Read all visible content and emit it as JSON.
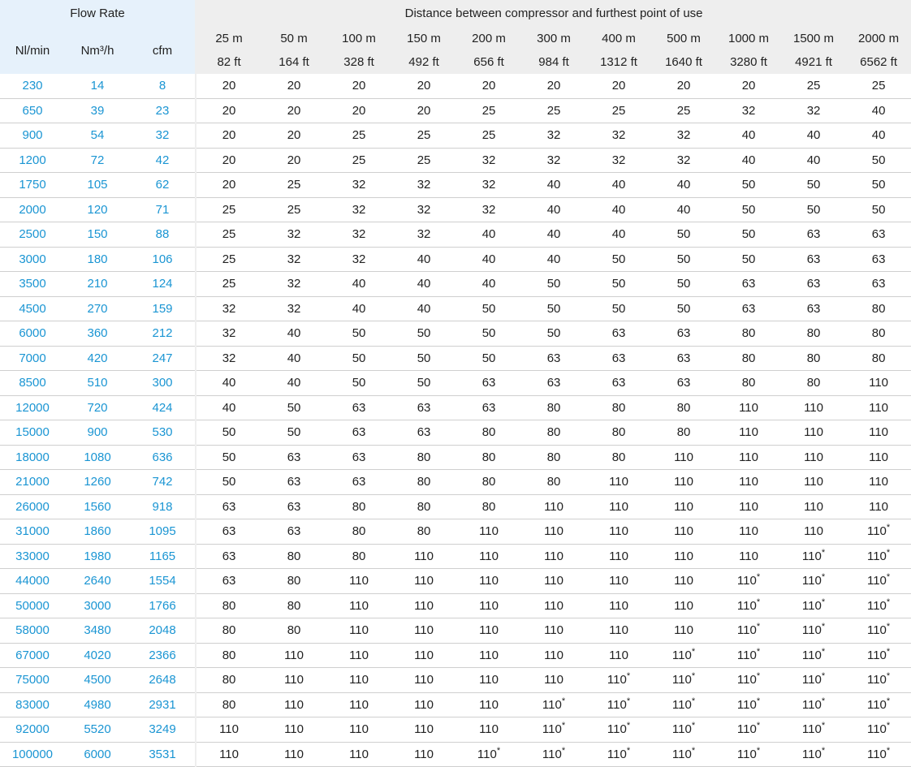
{
  "header": {
    "flow_rate": "Flow Rate",
    "distance": "Distance between compressor and furthest point of use",
    "col_nl": "Nl/min",
    "col_nm": "Nm³/h",
    "col_cfm": "cfm",
    "distances_m": [
      "25 m",
      "50 m",
      "100 m",
      "150 m",
      "200 m",
      "300 m",
      "400 m",
      "500 m",
      "1000 m",
      "1500 m",
      "2000 m"
    ],
    "distances_ft": [
      "82 ft",
      "164 ft",
      "328 ft",
      "492 ft",
      "656 ft",
      "984 ft",
      "1312 ft",
      "1640 ft",
      "3280 ft",
      "4921 ft",
      "6562 ft"
    ]
  },
  "rows": [
    {
      "nl": "230",
      "nm": "14",
      "cfm": "8",
      "v": [
        "20",
        "20",
        "20",
        "20",
        "20",
        "20",
        "20",
        "20",
        "20",
        "25",
        "25"
      ]
    },
    {
      "nl": "650",
      "nm": "39",
      "cfm": "23",
      "v": [
        "20",
        "20",
        "20",
        "20",
        "25",
        "25",
        "25",
        "25",
        "32",
        "32",
        "40"
      ]
    },
    {
      "nl": "900",
      "nm": "54",
      "cfm": "32",
      "v": [
        "20",
        "20",
        "25",
        "25",
        "25",
        "32",
        "32",
        "32",
        "40",
        "40",
        "40"
      ]
    },
    {
      "nl": "1200",
      "nm": "72",
      "cfm": "42",
      "v": [
        "20",
        "20",
        "25",
        "25",
        "32",
        "32",
        "32",
        "32",
        "40",
        "40",
        "50"
      ]
    },
    {
      "nl": "1750",
      "nm": "105",
      "cfm": "62",
      "v": [
        "20",
        "25",
        "32",
        "32",
        "32",
        "40",
        "40",
        "40",
        "50",
        "50",
        "50"
      ]
    },
    {
      "nl": "2000",
      "nm": "120",
      "cfm": "71",
      "v": [
        "25",
        "25",
        "32",
        "32",
        "32",
        "40",
        "40",
        "40",
        "50",
        "50",
        "50"
      ]
    },
    {
      "nl": "2500",
      "nm": "150",
      "cfm": "88",
      "v": [
        "25",
        "32",
        "32",
        "32",
        "40",
        "40",
        "40",
        "50",
        "50",
        "63",
        "63"
      ]
    },
    {
      "nl": "3000",
      "nm": "180",
      "cfm": "106",
      "v": [
        "25",
        "32",
        "32",
        "40",
        "40",
        "40",
        "50",
        "50",
        "50",
        "63",
        "63"
      ]
    },
    {
      "nl": "3500",
      "nm": "210",
      "cfm": "124",
      "v": [
        "25",
        "32",
        "40",
        "40",
        "40",
        "50",
        "50",
        "50",
        "63",
        "63",
        "63"
      ]
    },
    {
      "nl": "4500",
      "nm": "270",
      "cfm": "159",
      "v": [
        "32",
        "32",
        "40",
        "40",
        "50",
        "50",
        "50",
        "50",
        "63",
        "63",
        "80"
      ]
    },
    {
      "nl": "6000",
      "nm": "360",
      "cfm": "212",
      "v": [
        "32",
        "40",
        "50",
        "50",
        "50",
        "50",
        "63",
        "63",
        "80",
        "80",
        "80"
      ]
    },
    {
      "nl": "7000",
      "nm": "420",
      "cfm": "247",
      "v": [
        "32",
        "40",
        "50",
        "50",
        "50",
        "63",
        "63",
        "63",
        "80",
        "80",
        "80"
      ]
    },
    {
      "nl": "8500",
      "nm": "510",
      "cfm": "300",
      "v": [
        "40",
        "40",
        "50",
        "50",
        "63",
        "63",
        "63",
        "63",
        "80",
        "80",
        "110"
      ]
    },
    {
      "nl": "12000",
      "nm": "720",
      "cfm": "424",
      "v": [
        "40",
        "50",
        "63",
        "63",
        "63",
        "80",
        "80",
        "80",
        "110",
        "110",
        "110"
      ]
    },
    {
      "nl": "15000",
      "nm": "900",
      "cfm": "530",
      "v": [
        "50",
        "50",
        "63",
        "63",
        "80",
        "80",
        "80",
        "80",
        "110",
        "110",
        "110"
      ]
    },
    {
      "nl": "18000",
      "nm": "1080",
      "cfm": "636",
      "v": [
        "50",
        "63",
        "63",
        "80",
        "80",
        "80",
        "80",
        "110",
        "110",
        "110",
        "110"
      ]
    },
    {
      "nl": "21000",
      "nm": "1260",
      "cfm": "742",
      "v": [
        "50",
        "63",
        "63",
        "80",
        "80",
        "80",
        "110",
        "110",
        "110",
        "110",
        "110"
      ]
    },
    {
      "nl": "26000",
      "nm": "1560",
      "cfm": "918",
      "v": [
        "63",
        "63",
        "80",
        "80",
        "80",
        "110",
        "110",
        "110",
        "110",
        "110",
        "110"
      ]
    },
    {
      "nl": "31000",
      "nm": "1860",
      "cfm": "1095",
      "v": [
        "63",
        "63",
        "80",
        "80",
        "110",
        "110",
        "110",
        "110",
        "110",
        "110",
        "110*"
      ]
    },
    {
      "nl": "33000",
      "nm": "1980",
      "cfm": "1165",
      "v": [
        "63",
        "80",
        "80",
        "110",
        "110",
        "110",
        "110",
        "110",
        "110",
        "110*",
        "110*"
      ]
    },
    {
      "nl": "44000",
      "nm": "2640",
      "cfm": "1554",
      "v": [
        "63",
        "80",
        "110",
        "110",
        "110",
        "110",
        "110",
        "110",
        "110*",
        "110*",
        "110*"
      ]
    },
    {
      "nl": "50000",
      "nm": "3000",
      "cfm": "1766",
      "v": [
        "80",
        "80",
        "110",
        "110",
        "110",
        "110",
        "110",
        "110",
        "110*",
        "110*",
        "110*"
      ]
    },
    {
      "nl": "58000",
      "nm": "3480",
      "cfm": "2048",
      "v": [
        "80",
        "80",
        "110",
        "110",
        "110",
        "110",
        "110",
        "110",
        "110*",
        "110*",
        "110*"
      ]
    },
    {
      "nl": "67000",
      "nm": "4020",
      "cfm": "2366",
      "v": [
        "80",
        "110",
        "110",
        "110",
        "110",
        "110",
        "110",
        "110*",
        "110*",
        "110*",
        "110*"
      ]
    },
    {
      "nl": "75000",
      "nm": "4500",
      "cfm": "2648",
      "v": [
        "80",
        "110",
        "110",
        "110",
        "110",
        "110",
        "110*",
        "110*",
        "110*",
        "110*",
        "110*"
      ]
    },
    {
      "nl": "83000",
      "nm": "4980",
      "cfm": "2931",
      "v": [
        "80",
        "110",
        "110",
        "110",
        "110",
        "110*",
        "110*",
        "110*",
        "110*",
        "110*",
        "110*"
      ]
    },
    {
      "nl": "92000",
      "nm": "5520",
      "cfm": "3249",
      "v": [
        "110",
        "110",
        "110",
        "110",
        "110",
        "110*",
        "110*",
        "110*",
        "110*",
        "110*",
        "110*"
      ]
    },
    {
      "nl": "100000",
      "nm": "6000",
      "cfm": "3531",
      "v": [
        "110",
        "110",
        "110",
        "110",
        "110*",
        "110*",
        "110*",
        "110*",
        "110*",
        "110*",
        "110*"
      ]
    }
  ],
  "colors": {
    "flow_text": "#1a95d3",
    "header_flow_bg": "#e6f1fb",
    "header_dist_bg": "#eeeeee",
    "row_rule": "#cfcfcf"
  }
}
